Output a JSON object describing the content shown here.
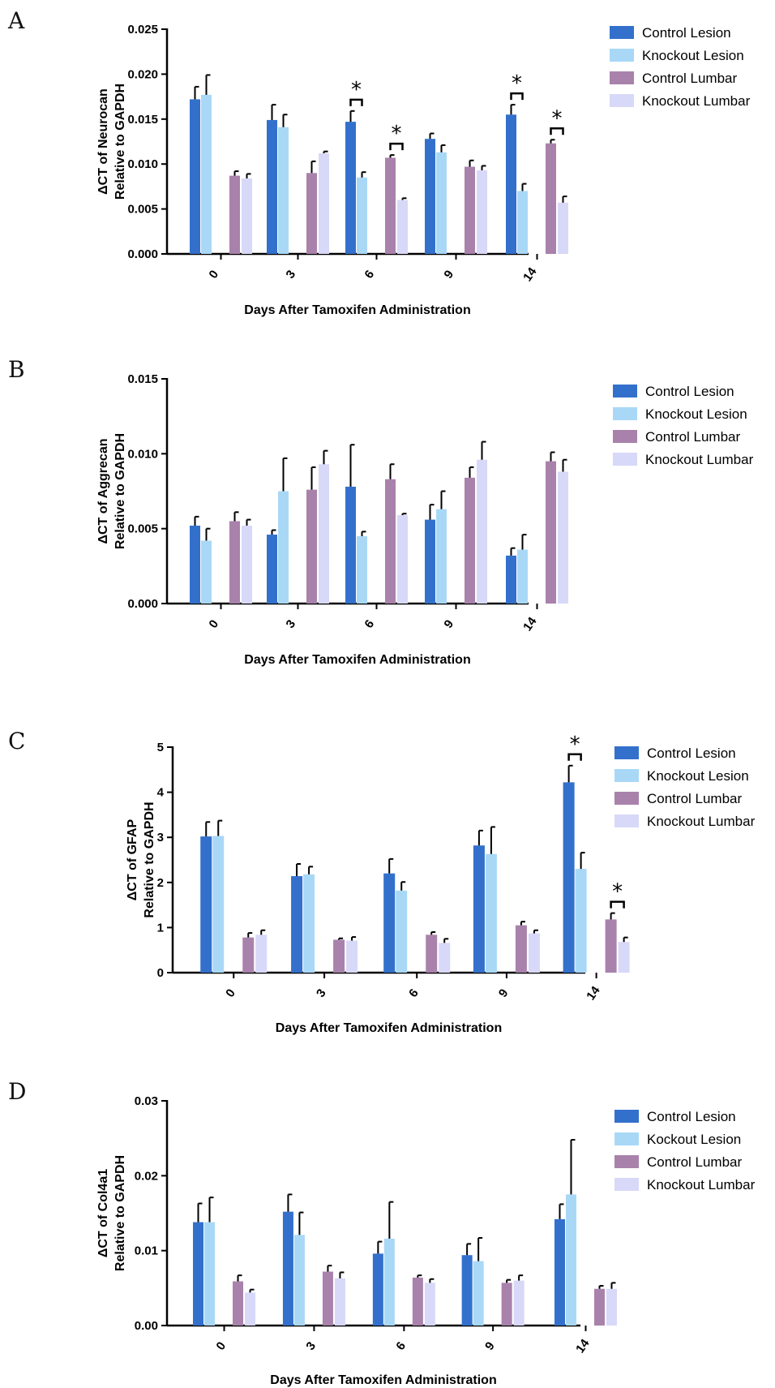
{
  "colors": {
    "control_lesion": "#3370cc",
    "knockout_lesion": "#a9d8f7",
    "control_lumbar": "#a982ac",
    "knockout_lumbar": "#d8d8f8"
  },
  "chart_data": [
    {
      "panel": "A",
      "type": "bar",
      "categories": [
        "0",
        "3",
        "6",
        "9",
        "14"
      ],
      "xlabel": "Days After Tamoxifen Administration",
      "ylabel": [
        "ΔCT of Neurocan",
        "Relative to GAPDH"
      ],
      "ylim": [
        0,
        0.025
      ],
      "yticks": [
        0,
        0.005,
        0.01,
        0.015,
        0.02,
        0.025
      ],
      "ytick_labels": [
        "0.000",
        "0.005",
        "0.010",
        "0.015",
        "0.020",
        "0.025"
      ],
      "series": [
        {
          "name": "Control Lesion",
          "color_key": "control_lesion",
          "values": [
            0.0172,
            0.0149,
            0.0147,
            0.0128,
            0.0155
          ],
          "errors": [
            0.0014,
            0.0017,
            0.0012,
            0.0006,
            0.0011
          ]
        },
        {
          "name": "Knockout Lesion",
          "color_key": "knockout_lesion",
          "values": [
            0.0177,
            0.0141,
            0.0085,
            0.0113,
            0.007
          ],
          "errors": [
            0.0022,
            0.0014,
            0.0006,
            0.0008,
            0.0008
          ]
        },
        {
          "name": "Control Lumbar",
          "color_key": "control_lumbar",
          "values": [
            0.0087,
            0.009,
            0.0107,
            0.0097,
            0.0123
          ],
          "errors": [
            0.0005,
            0.0013,
            0.0003,
            0.0007,
            0.0004
          ]
        },
        {
          "name": "Knockout Lumbar",
          "color_key": "knockout_lumbar",
          "values": [
            0.0084,
            0.0112,
            0.006,
            0.0093,
            0.0057
          ],
          "errors": [
            0.0005,
            0.0002,
            0.0002,
            0.0005,
            0.0007
          ]
        }
      ],
      "significance": [
        {
          "category_index": 2,
          "pair": "lesion",
          "label": "*"
        },
        {
          "category_index": 2,
          "pair": "lumbar",
          "label": "*"
        },
        {
          "category_index": 4,
          "pair": "lesion",
          "label": "*"
        },
        {
          "category_index": 4,
          "pair": "lumbar",
          "label": "*"
        }
      ],
      "legend_position": "right"
    },
    {
      "panel": "B",
      "type": "bar",
      "categories": [
        "0",
        "3",
        "6",
        "9",
        "14"
      ],
      "xlabel": "Days After Tamoxifen Administration",
      "ylabel": [
        "ΔCT of Aggrecan",
        "Relative to GAPDH"
      ],
      "ylim": [
        0,
        0.015
      ],
      "yticks": [
        0,
        0.005,
        0.01,
        0.015
      ],
      "ytick_labels": [
        "0.000",
        "0.005",
        "0.010",
        "0.015"
      ],
      "series": [
        {
          "name": "Control Lesion",
          "color_key": "control_lesion",
          "values": [
            0.0052,
            0.0046,
            0.0078,
            0.0056,
            0.0032
          ],
          "errors": [
            0.0006,
            0.0003,
            0.0028,
            0.001,
            0.0005
          ]
        },
        {
          "name": "Knockout Lesion",
          "color_key": "knockout_lesion",
          "values": [
            0.0042,
            0.0075,
            0.0045,
            0.0063,
            0.0036
          ],
          "errors": [
            0.0008,
            0.0022,
            0.0003,
            0.0012,
            0.001
          ]
        },
        {
          "name": "Control Lumbar",
          "color_key": "control_lumbar",
          "values": [
            0.0055,
            0.0076,
            0.0083,
            0.0084,
            0.0095
          ],
          "errors": [
            0.0006,
            0.0015,
            0.001,
            0.0007,
            0.0006
          ]
        },
        {
          "name": "Knockout Lumbar",
          "color_key": "knockout_lumbar",
          "values": [
            0.0052,
            0.0093,
            0.0059,
            0.0096,
            0.0088
          ],
          "errors": [
            0.0004,
            0.0009,
            0.0001,
            0.0012,
            0.0008
          ]
        }
      ],
      "significance": [],
      "legend_position": "right"
    },
    {
      "panel": "C",
      "type": "bar",
      "categories": [
        "0",
        "3",
        "6",
        "9",
        "14"
      ],
      "xlabel": "Days After Tamoxifen Administration",
      "ylabel": [
        "ΔCT of GFAP",
        "Relative to GAPDH"
      ],
      "ylim": [
        0,
        5
      ],
      "yticks": [
        0,
        1,
        2,
        3,
        4,
        5
      ],
      "ytick_labels": [
        "0",
        "1",
        "2",
        "3",
        "4",
        "5"
      ],
      "series": [
        {
          "name": "Control Lesion",
          "color_key": "control_lesion",
          "values": [
            3.02,
            2.14,
            2.2,
            2.82,
            4.22
          ],
          "errors": [
            0.32,
            0.27,
            0.32,
            0.33,
            0.37
          ]
        },
        {
          "name": "Knockout Lesion",
          "color_key": "knockout_lesion",
          "values": [
            3.03,
            2.18,
            1.82,
            2.63,
            2.3
          ],
          "errors": [
            0.34,
            0.17,
            0.19,
            0.6,
            0.36
          ]
        },
        {
          "name": "Control Lumbar",
          "color_key": "control_lumbar",
          "values": [
            0.78,
            0.73,
            0.84,
            1.05,
            1.18
          ],
          "errors": [
            0.1,
            0.03,
            0.06,
            0.08,
            0.14
          ]
        },
        {
          "name": "Knockout Lumbar",
          "color_key": "knockout_lumbar",
          "values": [
            0.84,
            0.71,
            0.66,
            0.87,
            0.68
          ],
          "errors": [
            0.1,
            0.08,
            0.09,
            0.07,
            0.1
          ]
        }
      ],
      "significance": [
        {
          "category_index": 4,
          "pair": "lesion",
          "label": "*"
        },
        {
          "category_index": 4,
          "pair": "lumbar",
          "label": "*"
        }
      ],
      "legend_position": "right"
    },
    {
      "panel": "D",
      "type": "bar",
      "categories": [
        "0",
        "3",
        "6",
        "9",
        "14"
      ],
      "xlabel": "Days After Tamoxifen Administration",
      "ylabel": [
        "ΔCT of Col4a1",
        "Relative to GAPDH"
      ],
      "ylim": [
        0,
        0.03
      ],
      "yticks": [
        0,
        0.01,
        0.02,
        0.03
      ],
      "ytick_labels": [
        "0.00",
        "0.01",
        "0.02",
        "0.03"
      ],
      "series": [
        {
          "name": "Control Lesion",
          "color_key": "control_lesion",
          "values": [
            0.0138,
            0.0152,
            0.0096,
            0.0094,
            0.0142
          ],
          "errors": [
            0.0025,
            0.0023,
            0.0016,
            0.0015,
            0.002
          ]
        },
        {
          "name": "Kockout Lesion",
          "color_key": "knockout_lesion",
          "values": [
            0.0138,
            0.0121,
            0.0116,
            0.0086,
            0.0175
          ],
          "errors": [
            0.0033,
            0.003,
            0.0049,
            0.0031,
            0.0073
          ]
        },
        {
          "name": "Control Lumbar",
          "color_key": "control_lumbar",
          "values": [
            0.0059,
            0.0072,
            0.0064,
            0.0057,
            0.0049
          ],
          "errors": [
            0.0008,
            0.0008,
            0.0003,
            0.0004,
            0.0004
          ]
        },
        {
          "name": "Knockout Lumbar",
          "color_key": "knockout_lumbar",
          "values": [
            0.0044,
            0.0063,
            0.0057,
            0.006,
            0.0049
          ],
          "errors": [
            0.0004,
            0.0008,
            0.0005,
            0.0007,
            0.0008
          ]
        }
      ],
      "significance": [],
      "legend_position": "right"
    }
  ]
}
